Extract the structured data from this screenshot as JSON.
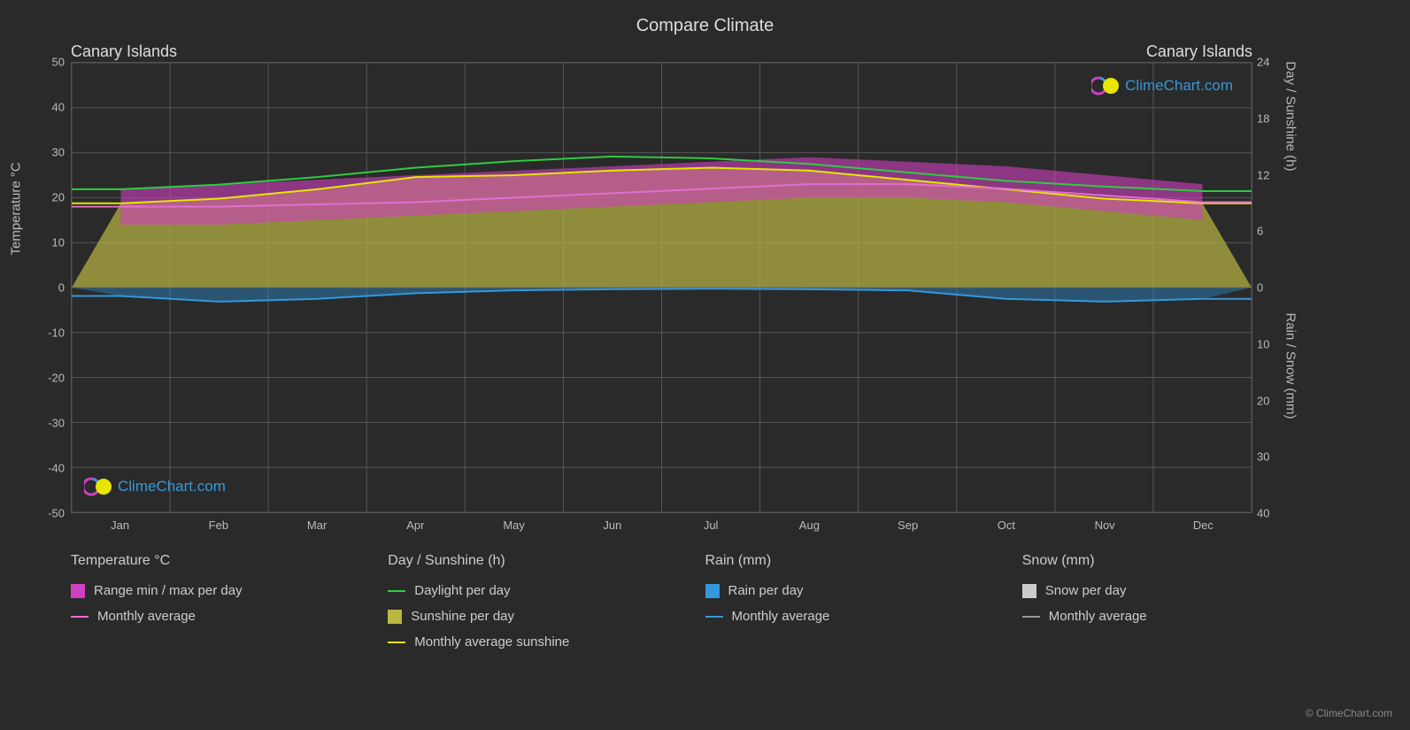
{
  "chart": {
    "title": "Compare Climate",
    "location_left": "Canary Islands",
    "location_right": "Canary Islands",
    "background_color": "#2a2a2a",
    "grid_color": "#555555",
    "months": [
      "Jan",
      "Feb",
      "Mar",
      "Apr",
      "May",
      "Jun",
      "Jul",
      "Aug",
      "Sep",
      "Oct",
      "Nov",
      "Dec"
    ],
    "y_left": {
      "label": "Temperature °C",
      "min": -50,
      "max": 50,
      "ticks": [
        -50,
        -40,
        -30,
        -20,
        -10,
        0,
        10,
        20,
        30,
        40,
        50
      ]
    },
    "y_right_top": {
      "label": "Day / Sunshine (h)",
      "min": 0,
      "max": 24,
      "ticks": [
        0,
        6,
        12,
        18,
        24
      ]
    },
    "y_right_bottom": {
      "label": "Rain / Snow (mm)",
      "min": 0,
      "max": 40,
      "ticks": [
        0,
        10,
        20,
        30,
        40
      ]
    },
    "series": {
      "daylight": {
        "color": "#2ecc40",
        "values": [
          10.5,
          11.0,
          11.8,
          12.8,
          13.5,
          14.0,
          13.8,
          13.2,
          12.3,
          11.4,
          10.8,
          10.3
        ]
      },
      "sunshine_avg": {
        "color": "#e6e600",
        "values": [
          9.0,
          9.5,
          10.5,
          11.8,
          12.0,
          12.5,
          12.8,
          12.5,
          11.5,
          10.5,
          9.5,
          9.0
        ]
      },
      "sunshine_fill": {
        "color": "#bab743",
        "opacity": 0.7
      },
      "temp_avg": {
        "color": "#e070d0",
        "values": [
          18.0,
          18.0,
          18.5,
          19.0,
          20.0,
          21.0,
          22.0,
          23.0,
          23.0,
          22.0,
          20.5,
          19.0
        ]
      },
      "temp_range": {
        "color": "#d040c0",
        "opacity": 0.6,
        "min": [
          14,
          14,
          15,
          16,
          17,
          18,
          19,
          20,
          20,
          19,
          17,
          15
        ],
        "max": [
          22,
          23,
          24,
          25,
          26,
          27,
          28,
          29,
          28,
          27,
          25,
          23
        ]
      },
      "rain_avg": {
        "color": "#3498db",
        "values": [
          1.5,
          2.5,
          2.0,
          1.0,
          0.5,
          0.3,
          0.2,
          0.3,
          0.5,
          2.0,
          2.5,
          2.0
        ]
      },
      "rain_fill": {
        "color": "#2980b9",
        "opacity": 0.5
      }
    },
    "watermark": {
      "text": "ClimeChart.com",
      "color": "#3498db"
    },
    "copyright": "© ClimeChart.com"
  },
  "legend": {
    "col1": {
      "header": "Temperature °C",
      "items": [
        {
          "type": "box",
          "color": "#d040c0",
          "label": "Range min / max per day"
        },
        {
          "type": "line",
          "color": "#e070d0",
          "label": "Monthly average"
        }
      ]
    },
    "col2": {
      "header": "Day / Sunshine (h)",
      "items": [
        {
          "type": "line",
          "color": "#2ecc40",
          "label": "Daylight per day"
        },
        {
          "type": "box",
          "color": "#bab743",
          "label": "Sunshine per day"
        },
        {
          "type": "line",
          "color": "#e6e600",
          "label": "Monthly average sunshine"
        }
      ]
    },
    "col3": {
      "header": "Rain (mm)",
      "items": [
        {
          "type": "box",
          "color": "#3498db",
          "label": "Rain per day"
        },
        {
          "type": "line",
          "color": "#3498db",
          "label": "Monthly average"
        }
      ]
    },
    "col4": {
      "header": "Snow (mm)",
      "items": [
        {
          "type": "box",
          "color": "#cccccc",
          "label": "Snow per day"
        },
        {
          "type": "line",
          "color": "#999999",
          "label": "Monthly average"
        }
      ]
    }
  }
}
